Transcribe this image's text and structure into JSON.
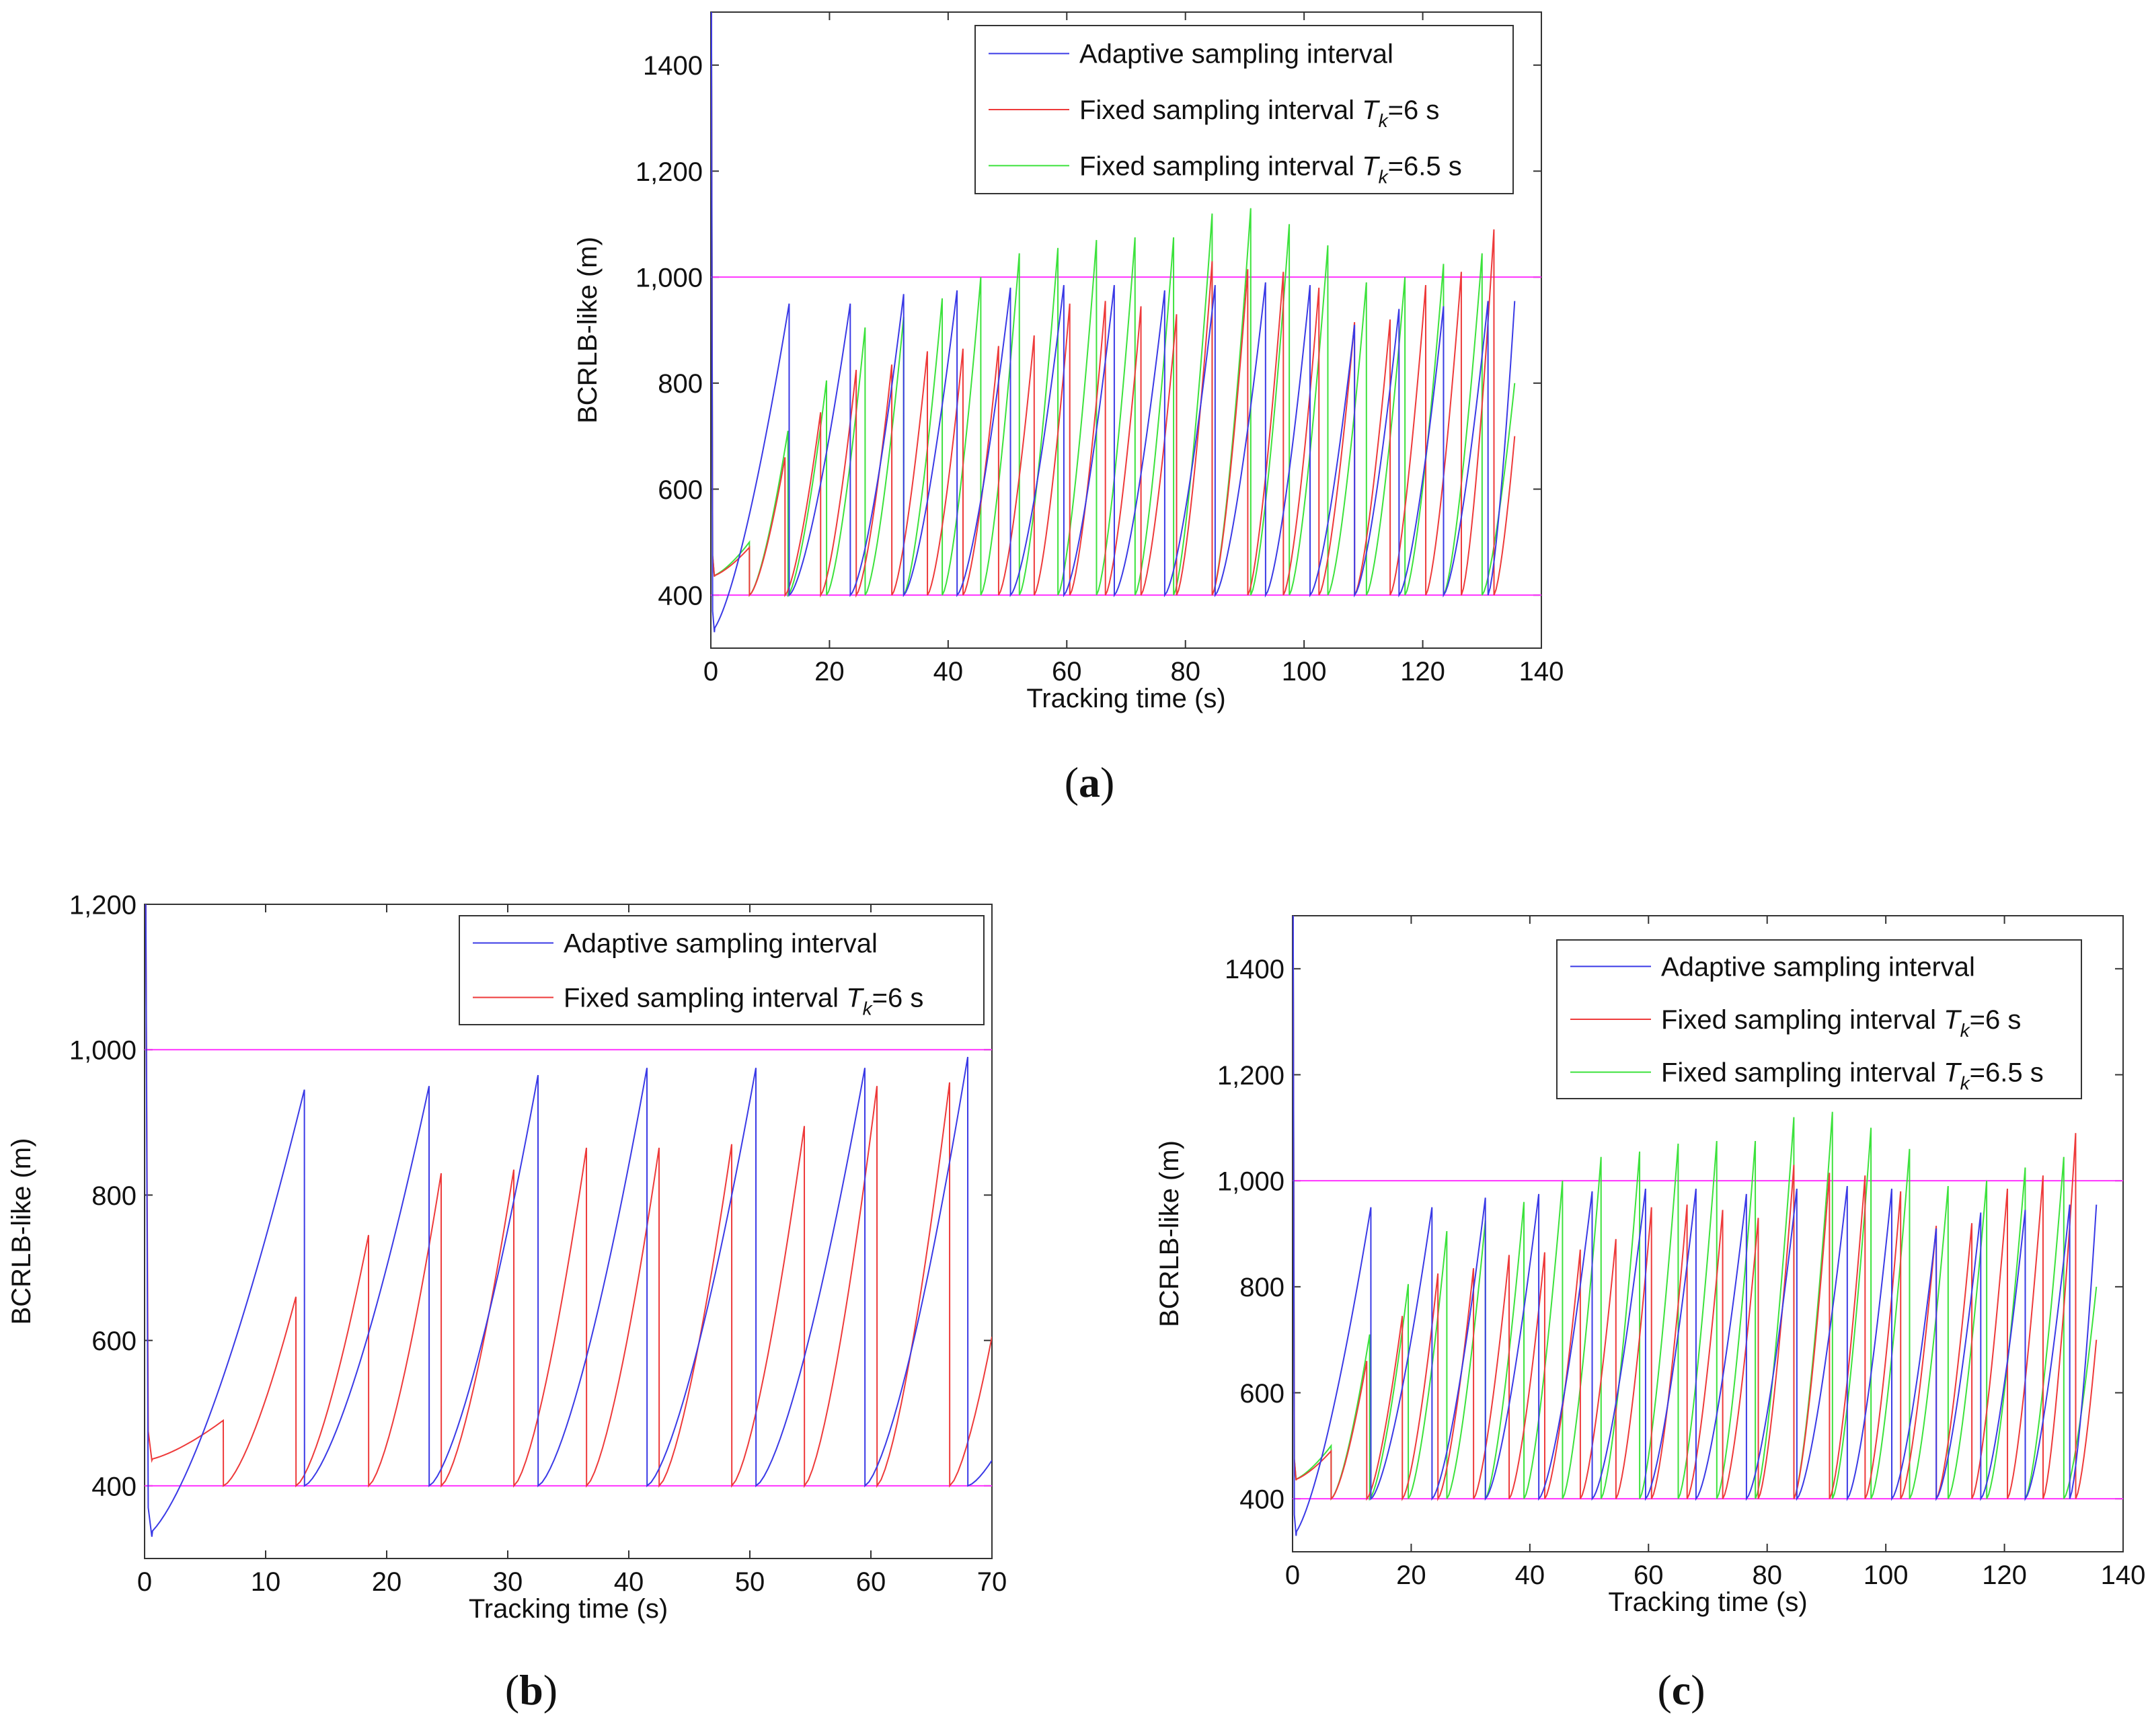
{
  "chart_data": [
    {
      "id": "a",
      "type": "line",
      "caption": "(a)",
      "xlabel": "Tracking time (s)",
      "ylabel": "BCRLB-like (m)",
      "xlim": [
        0,
        140
      ],
      "ylim": [
        300,
        1500
      ],
      "xticks": [
        0,
        20,
        40,
        60,
        80,
        100,
        120,
        140
      ],
      "xtick_labels": [
        "0",
        "20",
        "40",
        "60",
        "80",
        "100",
        "120",
        "140"
      ],
      "yticks": [
        400,
        600,
        800,
        1000,
        1200,
        1400
      ],
      "ytick_labels": [
        "400",
        "600",
        "800",
        "1,000",
        "1,200",
        "1400"
      ],
      "thresholds": [
        400,
        1000
      ],
      "legend": [
        "Adaptive sampling interval",
        "Fixed sampling interval T_k=6 s",
        "Fixed sampling interval T_k=6.5 s"
      ],
      "series": [
        {
          "name": "Adaptive sampling interval",
          "color": "#3a3ae6",
          "start": 330,
          "cycles": [
            [
              13.2,
              950
            ],
            [
              23.5,
              950
            ],
            [
              32.5,
              968
            ],
            [
              41.5,
              975
            ],
            [
              50.5,
              980
            ],
            [
              59.5,
              985
            ],
            [
              68,
              985
            ],
            [
              76.5,
              975
            ],
            [
              85,
              985
            ],
            [
              93.5,
              990
            ],
            [
              101,
              985
            ],
            [
              108.5,
              910
            ],
            [
              116,
              940
            ],
            [
              123.5,
              945
            ],
            [
              131,
              955
            ],
            [
              135.5,
              955
            ]
          ]
        },
        {
          "name": "Fixed sampling interval T_k=6 s",
          "color": "#ee3a3a",
          "start": 435,
          "cycles": [
            [
              6.5,
              490
            ],
            [
              12.5,
              660
            ],
            [
              18.5,
              745
            ],
            [
              24.5,
              825
            ],
            [
              30.5,
              835
            ],
            [
              36.5,
              860
            ],
            [
              42.5,
              865
            ],
            [
              48.5,
              870
            ],
            [
              54.5,
              890
            ],
            [
              60.5,
              950
            ],
            [
              66.5,
              955
            ],
            [
              72.5,
              945
            ],
            [
              78.5,
              930
            ],
            [
              84.5,
              1030
            ],
            [
              90.5,
              1015
            ],
            [
              96.5,
              1010
            ],
            [
              102.5,
              980
            ],
            [
              108.5,
              915
            ],
            [
              114.5,
              920
            ],
            [
              120.5,
              985
            ],
            [
              126.5,
              1010
            ],
            [
              132,
              1090
            ],
            [
              135.5,
              700
            ]
          ]
        },
        {
          "name": "Fixed sampling interval T_k=6.5 s",
          "color": "#3ce23c",
          "start": 435,
          "cycles": [
            [
              6.5,
              500
            ],
            [
              13,
              710
            ],
            [
              19.5,
              805
            ],
            [
              26,
              905
            ],
            [
              32.5,
              925
            ],
            [
              39,
              960
            ],
            [
              45.5,
              1000
            ],
            [
              52,
              1045
            ],
            [
              58.5,
              1055
            ],
            [
              65,
              1070
            ],
            [
              71.5,
              1075
            ],
            [
              78,
              1075
            ],
            [
              84.5,
              1120
            ],
            [
              91,
              1130
            ],
            [
              97.5,
              1100
            ],
            [
              104,
              1060
            ],
            [
              110.5,
              990
            ],
            [
              117,
              1000
            ],
            [
              123.5,
              1025
            ],
            [
              130,
              1045
            ],
            [
              135.5,
              800
            ]
          ]
        }
      ]
    },
    {
      "id": "b",
      "type": "line",
      "caption": "(b)",
      "xlabel": "Tracking time (s)",
      "ylabel": "BCRLB-like (m)",
      "xlim": [
        0,
        70
      ],
      "ylim": [
        300,
        1200
      ],
      "xticks": [
        0,
        10,
        20,
        30,
        40,
        50,
        60,
        70
      ],
      "xtick_labels": [
        "0",
        "10",
        "20",
        "30",
        "40",
        "50",
        "60",
        "70"
      ],
      "yticks": [
        400,
        600,
        800,
        1000,
        1200
      ],
      "ytick_labels": [
        "400",
        "600",
        "800",
        "1,000",
        "1,200"
      ],
      "thresholds": [
        400,
        1000
      ],
      "legend": [
        "Adaptive sampling interval",
        "Fixed sampling interval T_k=6 s"
      ],
      "series": [
        {
          "name": "Adaptive sampling interval",
          "color": "#3a3ae6",
          "start": 330,
          "cycles": [
            [
              13.2,
              945
            ],
            [
              23.5,
              950
            ],
            [
              32.5,
              965
            ],
            [
              41.5,
              975
            ],
            [
              50.5,
              975
            ],
            [
              59.5,
              975
            ],
            [
              68,
              990
            ],
            [
              70,
              435
            ]
          ]
        },
        {
          "name": "Fixed sampling interval T_k=6 s",
          "color": "#ee3a3a",
          "start": 435,
          "cycles": [
            [
              6.5,
              490
            ],
            [
              12.5,
              660
            ],
            [
              18.5,
              745
            ],
            [
              24.5,
              830
            ],
            [
              30.5,
              835
            ],
            [
              36.5,
              865
            ],
            [
              42.5,
              865
            ],
            [
              48.5,
              870
            ],
            [
              54.5,
              895
            ],
            [
              60.5,
              950
            ],
            [
              66.5,
              955
            ],
            [
              70,
              605
            ]
          ]
        }
      ]
    },
    {
      "id": "c",
      "type": "line",
      "caption": "(c)",
      "xlabel": "Tracking time (s)",
      "ylabel": "BCRLB-like (m)",
      "xlim": [
        0,
        140
      ],
      "ylim": [
        300,
        1500
      ],
      "xticks": [
        0,
        20,
        40,
        60,
        80,
        100,
        120,
        140
      ],
      "xtick_labels": [
        "0",
        "20",
        "40",
        "60",
        "80",
        "100",
        "120",
        "140"
      ],
      "yticks": [
        400,
        600,
        800,
        1000,
        1200,
        1400
      ],
      "ytick_labels": [
        "400",
        "600",
        "800",
        "1,000",
        "1,200",
        "1400"
      ],
      "thresholds": [
        400,
        1000
      ],
      "legend": [
        "Adaptive sampling interval",
        "Fixed sampling interval T_k=6 s",
        "Fixed sampling interval T_k=6.5 s"
      ],
      "series": [
        {
          "name": "Adaptive sampling interval",
          "color": "#3a3ae6",
          "start": 330,
          "cycles": [
            [
              13.2,
              950
            ],
            [
              23.5,
              950
            ],
            [
              32.5,
              968
            ],
            [
              41.5,
              975
            ],
            [
              50.5,
              980
            ],
            [
              59.5,
              985
            ],
            [
              68,
              985
            ],
            [
              76.5,
              975
            ],
            [
              85,
              985
            ],
            [
              93.5,
              990
            ],
            [
              101,
              985
            ],
            [
              108.5,
              910
            ],
            [
              116,
              940
            ],
            [
              123.5,
              945
            ],
            [
              131,
              955
            ],
            [
              135.5,
              955
            ]
          ]
        },
        {
          "name": "Fixed sampling interval T_k=6 s",
          "color": "#ee3a3a",
          "start": 435,
          "cycles": [
            [
              6.5,
              490
            ],
            [
              12.5,
              660
            ],
            [
              18.5,
              745
            ],
            [
              24.5,
              825
            ],
            [
              30.5,
              835
            ],
            [
              36.5,
              860
            ],
            [
              42.5,
              865
            ],
            [
              48.5,
              870
            ],
            [
              54.5,
              890
            ],
            [
              60.5,
              950
            ],
            [
              66.5,
              955
            ],
            [
              72.5,
              945
            ],
            [
              78.5,
              930
            ],
            [
              84.5,
              1030
            ],
            [
              90.5,
              1015
            ],
            [
              96.5,
              1010
            ],
            [
              102.5,
              980
            ],
            [
              108.5,
              915
            ],
            [
              114.5,
              920
            ],
            [
              120.5,
              985
            ],
            [
              126.5,
              1010
            ],
            [
              132,
              1090
            ],
            [
              135.5,
              700
            ]
          ]
        },
        {
          "name": "Fixed sampling interval T_k=6.5 s",
          "color": "#3ce23c",
          "start": 435,
          "cycles": [
            [
              6.5,
              500
            ],
            [
              13,
              710
            ],
            [
              19.5,
              805
            ],
            [
              26,
              905
            ],
            [
              32.5,
              925
            ],
            [
              39,
              960
            ],
            [
              45.5,
              1000
            ],
            [
              52,
              1045
            ],
            [
              58.5,
              1055
            ],
            [
              65,
              1070
            ],
            [
              71.5,
              1075
            ],
            [
              78,
              1075
            ],
            [
              84.5,
              1120
            ],
            [
              91,
              1130
            ],
            [
              97.5,
              1100
            ],
            [
              104,
              1060
            ],
            [
              110.5,
              990
            ],
            [
              117,
              1000
            ],
            [
              123.5,
              1025
            ],
            [
              130,
              1045
            ],
            [
              135.5,
              800
            ]
          ]
        }
      ]
    }
  ],
  "colors": {
    "threshold": "#ff33ff",
    "axes": "#333333"
  }
}
